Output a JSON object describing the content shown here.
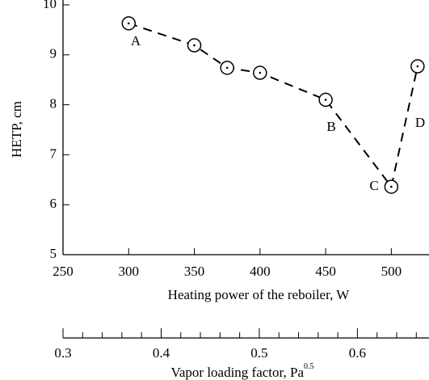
{
  "chart_data": {
    "type": "line",
    "x": [
      300,
      350,
      375,
      400,
      450,
      500,
      520
    ],
    "series": [
      {
        "color": "#000000",
        "values": [
          9.63,
          9.19,
          8.74,
          8.64,
          8.1,
          6.36,
          8.77
        ]
      }
    ],
    "xlim": [
      250,
      525
    ],
    "xticks": [
      250,
      300,
      350,
      400,
      450,
      500
    ],
    "ylim": [
      5,
      10
    ],
    "yticks": [
      5,
      6,
      7,
      8,
      9,
      10
    ],
    "xlabel": "Heating power of the reboiler, W",
    "ylabel": "HETP, cm",
    "x2lim": [
      0.3,
      0.668
    ],
    "x2ticks": [
      0.3,
      0.4,
      0.5,
      0.6
    ],
    "x2minorticks": [
      0.32,
      0.34,
      0.36,
      0.38,
      0.42,
      0.44,
      0.46,
      0.48,
      0.52,
      0.54,
      0.56,
      0.58,
      0.62,
      0.64,
      0.66
    ],
    "x2label": "Vapor loading factor, Pa",
    "x2label_sup": "0.5",
    "annotations": [
      "A",
      "B",
      "C",
      "D"
    ]
  }
}
